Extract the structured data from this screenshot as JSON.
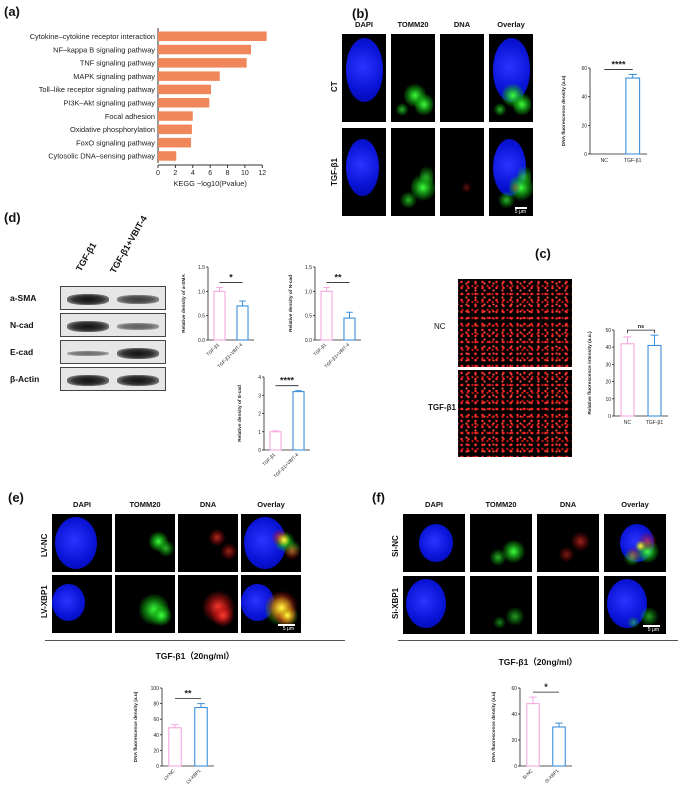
{
  "panels": {
    "a": {
      "label": "(a)",
      "chart_data": {
        "type": "bar",
        "orientation": "horizontal",
        "categories": [
          "Cytokine–cytokine receptor interaction",
          "NF–kappa B signaling pathway",
          "TNF signaling pathway",
          "MAPK signaling pathway",
          "Toll–like receptor signaling pathway",
          "PI3K–Akt signaling pathway",
          "Focal adhesion",
          "Oxidative phosphorylation",
          "FoxO signaling pathway",
          "Cytosolic DNA–sensing pathway"
        ],
        "values": [
          12.5,
          10.7,
          10.2,
          7.1,
          6.1,
          5.9,
          4.0,
          3.9,
          3.8,
          2.1
        ],
        "xlabel": "KEGG  −log10(Pvalue)",
        "xlim": [
          0,
          13
        ],
        "xticks": [
          "0",
          "2",
          "4",
          "6",
          "8",
          "10",
          "12"
        ],
        "bar_color": "#f0875a"
      }
    },
    "b": {
      "label": "(b)",
      "columns": [
        "DAPI",
        "TOMM20",
        "DNA",
        "Overlay"
      ],
      "rows": [
        "CT",
        "TGF-β1"
      ],
      "scale": "5 μm",
      "chart_data": {
        "type": "bar",
        "categories": [
          "NC",
          "TGF-β1"
        ],
        "values": [
          0,
          53
        ],
        "errors": [
          0,
          2.5
        ],
        "ylabel": "DNA fluorescence density (a.u)",
        "ylim": [
          0,
          60
        ],
        "yticks": [
          "0",
          "20",
          "40",
          "60"
        ],
        "significance": "****",
        "colors": [
          "#f7a8e0",
          "#3b8fd8"
        ]
      }
    },
    "d": {
      "label": "(d)",
      "lanes": [
        "TGF-β1",
        "TGF-β1+VBIT-4"
      ],
      "blots": [
        "a-SMA",
        "N-cad",
        "E-cad",
        "β-Actin"
      ],
      "charts": [
        {
          "type": "bar",
          "categories": [
            "TGF-β1",
            "TGF-β1+VBIT-4"
          ],
          "values": [
            1.0,
            0.7
          ],
          "errors": [
            0.08,
            0.1
          ],
          "ylabel": "Relative density of a-SMA",
          "ylim": [
            0,
            1.5
          ],
          "yticks": [
            "0.0",
            "0.5",
            "1.0",
            "1.5"
          ],
          "significance": "*"
        },
        {
          "type": "bar",
          "categories": [
            "TGF-β1",
            "TGF-β1+VBIT-4"
          ],
          "values": [
            1.0,
            0.45
          ],
          "errors": [
            0.08,
            0.12
          ],
          "ylabel": "Relative density of N-cad",
          "ylim": [
            0,
            1.5
          ],
          "yticks": [
            "0.0",
            "0.5",
            "1.0",
            "1.5"
          ],
          "significance": "**"
        },
        {
          "type": "bar",
          "categories": [
            "TGF-β1",
            "TGF-β1+VBIT-4"
          ],
          "values": [
            1.0,
            3.2
          ],
          "errors": [
            0.05,
            0.05
          ],
          "ylabel": "Relative density of E-cad",
          "ylim": [
            0,
            4
          ],
          "yticks": [
            "0",
            "1",
            "2",
            "3",
            "4"
          ],
          "significance": "****"
        }
      ]
    },
    "c": {
      "label": "(c)",
      "rows": [
        "NC",
        "TGF-β1"
      ],
      "chart_data": {
        "type": "bar",
        "categories": [
          "NC",
          "TGF-β1"
        ],
        "values": [
          42,
          41
        ],
        "errors": [
          4,
          6
        ],
        "ylabel": "Relative fluorescence intensity (a.u.)",
        "ylim": [
          0,
          50
        ],
        "yticks": [
          "0",
          "10",
          "20",
          "30",
          "40",
          "50"
        ],
        "significance": "ns"
      }
    },
    "e": {
      "label": "(e)",
      "columns": [
        "DAPI",
        "TOMM20",
        "DNA",
        "Overlay"
      ],
      "rows": [
        "LV-NC",
        "LV-XBP1"
      ],
      "scale": "5 μm",
      "treatment": "TGF-β1（20ng/ml）",
      "chart_data": {
        "type": "bar",
        "categories": [
          "LV-NC",
          "LV-XBP1"
        ],
        "values": [
          49,
          75
        ],
        "errors": [
          4,
          5
        ],
        "ylabel": "DNA fluorescence density (a.u)",
        "ylim": [
          0,
          100
        ],
        "yticks": [
          "0",
          "20",
          "40",
          "60",
          "80",
          "100"
        ],
        "significance": "**"
      }
    },
    "f": {
      "label": "(f)",
      "columns": [
        "DAPI",
        "TOMM20",
        "DNA",
        "Overlay"
      ],
      "rows": [
        "Si-NC",
        "Si-XBP1"
      ],
      "scale": "5 μm",
      "treatment": "TGF-β1（20ng/ml）",
      "chart_data": {
        "type": "bar",
        "categories": [
          "Si-NC",
          "Si-XBP1"
        ],
        "values": [
          48,
          30
        ],
        "errors": [
          5,
          3
        ],
        "ylabel": "DNA fluorescence density (a.u)",
        "ylim": [
          0,
          60
        ],
        "yticks": [
          "0",
          "20",
          "40",
          "60"
        ],
        "significance": "*"
      }
    }
  }
}
